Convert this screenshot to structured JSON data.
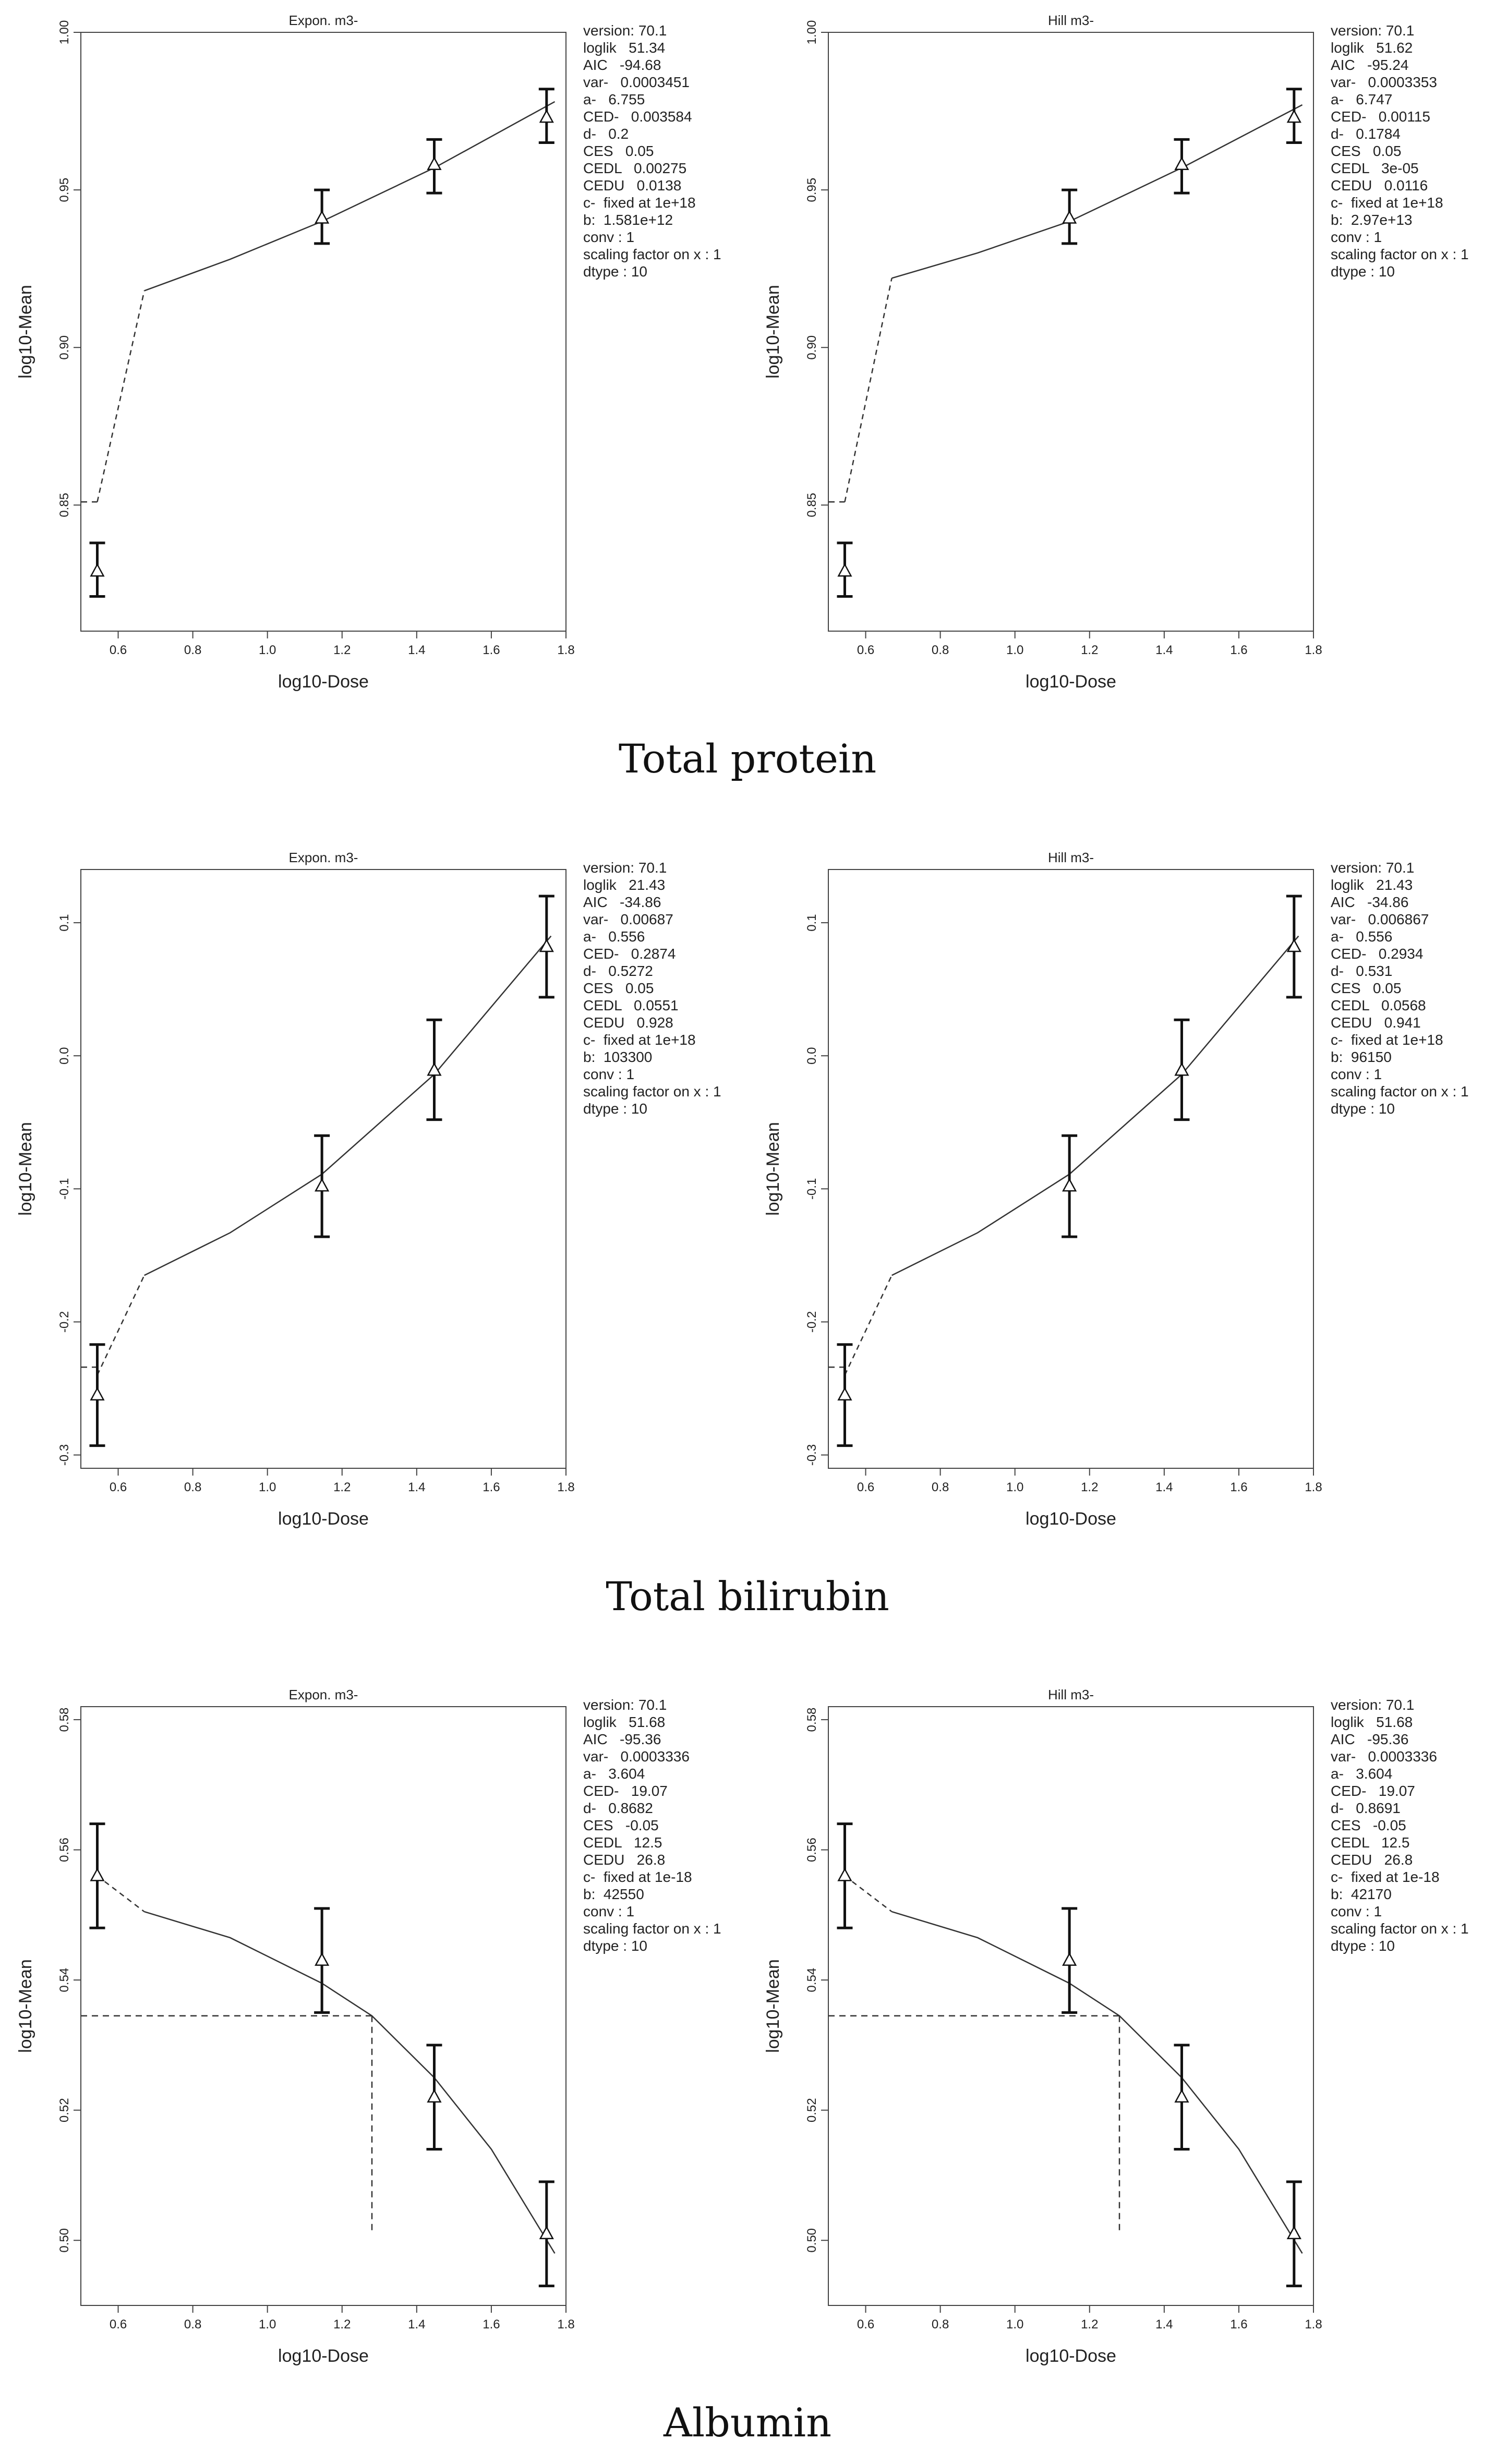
{
  "sections": [
    {
      "title": "Total protein",
      "panels": [
        {
          "model": "Expon. m3-",
          "stats": [
            "version: 70.1",
            "loglik   51.34",
            "AIC   -94.68",
            "var-   0.0003451",
            "a-   6.755",
            "CED-   0.003584",
            "d-   0.2",
            "CES   0.05",
            "CEDL   0.00275",
            "CEDU   0.0138",
            "c-  fixed at 1e+18",
            "b:  1.581e+12",
            "conv : 1",
            "scaling factor on x : 1",
            "dtype : 10"
          ]
        },
        {
          "model": "Hill m3-",
          "stats": [
            "version: 70.1",
            "loglik   51.62",
            "AIC   -95.24",
            "var-   0.0003353",
            "a-   6.747",
            "CED-   0.00115",
            "d-   0.1784",
            "CES   0.05",
            "CEDL   3e-05",
            "CEDU   0.0116",
            "c-  fixed at 1e+18",
            "b:  2.97e+13",
            "conv : 1",
            "scaling factor on x : 1",
            "dtype : 10"
          ]
        }
      ]
    },
    {
      "title": "Total bilirubin",
      "panels": [
        {
          "model": "Expon. m3-",
          "stats": [
            "version: 70.1",
            "loglik   21.43",
            "AIC   -34.86",
            "var-   0.00687",
            "a-   0.556",
            "CED-   0.2874",
            "d-   0.5272",
            "CES   0.05",
            "CEDL   0.0551",
            "CEDU   0.928",
            "c-  fixed at 1e+18",
            "b:  103300",
            "conv : 1",
            "scaling factor on x : 1",
            "dtype : 10"
          ]
        },
        {
          "model": "Hill m3-",
          "stats": [
            "version: 70.1",
            "loglik   21.43",
            "AIC   -34.86",
            "var-   0.006867",
            "a-   0.556",
            "CED-   0.2934",
            "d-   0.531",
            "CES   0.05",
            "CEDL   0.0568",
            "CEDU   0.941",
            "c-  fixed at 1e+18",
            "b:  96150",
            "conv : 1",
            "scaling factor on x : 1",
            "dtype : 10"
          ]
        }
      ]
    },
    {
      "title": "Albumin",
      "panels": [
        {
          "model": "Expon. m3-",
          "stats": [
            "version: 70.1",
            "loglik   51.68",
            "AIC   -95.36",
            "var-   0.0003336",
            "a-   3.604",
            "CED-   19.07",
            "d-   0.8682",
            "CES   -0.05",
            "CEDL   12.5",
            "CEDU   26.8",
            "c-  fixed at 1e-18",
            "b:  42550",
            "conv : 1",
            "scaling factor on x : 1",
            "dtype : 10"
          ]
        },
        {
          "model": "Hill m3-",
          "stats": [
            "version: 70.1",
            "loglik   51.68",
            "AIC   -95.36",
            "var-   0.0003336",
            "a-   3.604",
            "CED-   19.07",
            "d-   0.8691",
            "CES   -0.05",
            "CEDL   12.5",
            "CEDU   26.8",
            "c-  fixed at 1e-18",
            "b:  42170",
            "conv : 1",
            "scaling factor on x : 1",
            "dtype : 10"
          ]
        }
      ]
    }
  ],
  "chart_data": [
    {
      "type": "line",
      "section": "Total protein",
      "title": "Expon. m3-",
      "xlabel": "log10-Dose",
      "ylabel": "log10-Mean",
      "xlim": [
        0.5,
        1.8
      ],
      "ylim": [
        0.81,
        1.0
      ],
      "xticks": [
        0.6,
        0.8,
        1.0,
        1.2,
        1.4,
        1.6,
        1.8
      ],
      "yticks": [
        0.85,
        0.9,
        0.95,
        1.0
      ],
      "points": [
        {
          "x": 0.544,
          "y": 0.829,
          "lo": 0.821,
          "hi": 0.838
        },
        {
          "x": 1.146,
          "y": 0.941,
          "lo": 0.933,
          "hi": 0.95
        },
        {
          "x": 1.447,
          "y": 0.958,
          "lo": 0.949,
          "hi": 0.966
        },
        {
          "x": 1.748,
          "y": 0.973,
          "lo": 0.965,
          "hi": 0.982
        }
      ],
      "fit": [
        [
          0.544,
          0.851
        ],
        [
          0.67,
          0.918
        ],
        [
          0.9,
          0.928
        ],
        [
          1.146,
          0.94
        ],
        [
          1.447,
          0.957
        ],
        [
          1.77,
          0.978
        ]
      ],
      "ces_lines": [
        [
          [
            0.5,
            0.851
          ],
          [
            0.544,
            0.851
          ]
        ]
      ]
    },
    {
      "type": "line",
      "section": "Total protein",
      "title": "Hill m3-",
      "xlabel": "log10-Dose",
      "ylabel": "log10-Mean",
      "xlim": [
        0.5,
        1.8
      ],
      "ylim": [
        0.81,
        1.0
      ],
      "xticks": [
        0.6,
        0.8,
        1.0,
        1.2,
        1.4,
        1.6,
        1.8
      ],
      "yticks": [
        0.85,
        0.9,
        0.95,
        1.0
      ],
      "points": [
        {
          "x": 0.544,
          "y": 0.829,
          "lo": 0.821,
          "hi": 0.838
        },
        {
          "x": 1.146,
          "y": 0.941,
          "lo": 0.933,
          "hi": 0.95
        },
        {
          "x": 1.447,
          "y": 0.958,
          "lo": 0.949,
          "hi": 0.966
        },
        {
          "x": 1.748,
          "y": 0.973,
          "lo": 0.965,
          "hi": 0.982
        }
      ],
      "fit": [
        [
          0.544,
          0.851
        ],
        [
          0.67,
          0.922
        ],
        [
          0.9,
          0.93
        ],
        [
          1.146,
          0.94
        ],
        [
          1.447,
          0.957
        ],
        [
          1.77,
          0.977
        ]
      ],
      "ces_lines": [
        [
          [
            0.5,
            0.851
          ],
          [
            0.544,
            0.851
          ]
        ]
      ]
    },
    {
      "type": "line",
      "section": "Total bilirubin",
      "title": "Expon. m3-",
      "xlabel": "log10-Dose",
      "ylabel": "log10-Mean",
      "xlim": [
        0.5,
        1.8
      ],
      "ylim": [
        -0.31,
        0.14
      ],
      "xticks": [
        0.6,
        0.8,
        1.0,
        1.2,
        1.4,
        1.6,
        1.8
      ],
      "yticks": [
        -0.3,
        -0.2,
        -0.1,
        0.0,
        0.1
      ],
      "points": [
        {
          "x": 0.544,
          "y": -0.255,
          "lo": -0.293,
          "hi": -0.217
        },
        {
          "x": 1.146,
          "y": -0.098,
          "lo": -0.136,
          "hi": -0.06
        },
        {
          "x": 1.447,
          "y": -0.011,
          "lo": -0.048,
          "hi": 0.027
        },
        {
          "x": 1.748,
          "y": 0.082,
          "lo": 0.044,
          "hi": 0.12
        }
      ],
      "fit": [
        [
          0.544,
          -0.24
        ],
        [
          0.67,
          -0.165
        ],
        [
          0.9,
          -0.133
        ],
        [
          1.146,
          -0.089
        ],
        [
          1.447,
          -0.014
        ],
        [
          1.76,
          0.09
        ]
      ],
      "ces_lines": [
        [
          [
            0.5,
            -0.234
          ],
          [
            0.544,
            -0.234
          ]
        ]
      ]
    },
    {
      "type": "line",
      "section": "Total bilirubin",
      "title": "Hill m3-",
      "xlabel": "log10-Dose",
      "ylabel": "log10-Mean",
      "xlim": [
        0.5,
        1.8
      ],
      "ylim": [
        -0.31,
        0.14
      ],
      "xticks": [
        0.6,
        0.8,
        1.0,
        1.2,
        1.4,
        1.6,
        1.8
      ],
      "yticks": [
        -0.3,
        -0.2,
        -0.1,
        0.0,
        0.1
      ],
      "points": [
        {
          "x": 0.544,
          "y": -0.255,
          "lo": -0.293,
          "hi": -0.217
        },
        {
          "x": 1.146,
          "y": -0.098,
          "lo": -0.136,
          "hi": -0.06
        },
        {
          "x": 1.447,
          "y": -0.011,
          "lo": -0.048,
          "hi": 0.027
        },
        {
          "x": 1.748,
          "y": 0.082,
          "lo": 0.044,
          "hi": 0.12
        }
      ],
      "fit": [
        [
          0.544,
          -0.24
        ],
        [
          0.67,
          -0.165
        ],
        [
          0.9,
          -0.133
        ],
        [
          1.146,
          -0.089
        ],
        [
          1.447,
          -0.014
        ],
        [
          1.76,
          0.09
        ]
      ],
      "ces_lines": [
        [
          [
            0.5,
            -0.234
          ],
          [
            0.544,
            -0.234
          ]
        ]
      ]
    },
    {
      "type": "line",
      "section": "Albumin",
      "title": "Expon. m3-",
      "xlabel": "log10-Dose",
      "ylabel": "log10-Mean",
      "xlim": [
        0.5,
        1.8
      ],
      "ylim": [
        0.49,
        0.582
      ],
      "xticks": [
        0.6,
        0.8,
        1.0,
        1.2,
        1.4,
        1.6,
        1.8
      ],
      "yticks": [
        0.5,
        0.52,
        0.54,
        0.56,
        0.58
      ],
      "points": [
        {
          "x": 0.544,
          "y": 0.556,
          "lo": 0.548,
          "hi": 0.564
        },
        {
          "x": 1.146,
          "y": 0.543,
          "lo": 0.535,
          "hi": 0.551
        },
        {
          "x": 1.447,
          "y": 0.522,
          "lo": 0.514,
          "hi": 0.53
        },
        {
          "x": 1.748,
          "y": 0.501,
          "lo": 0.493,
          "hi": 0.509
        }
      ],
      "fit": [
        [
          0.544,
          0.556
        ],
        [
          0.67,
          0.5505
        ],
        [
          0.9,
          0.5465
        ],
        [
          1.146,
          0.5395
        ],
        [
          1.28,
          0.5345
        ],
        [
          1.447,
          0.525
        ],
        [
          1.6,
          0.514
        ],
        [
          1.77,
          0.498
        ]
      ],
      "ces_lines": [
        [
          [
            0.5,
            0.5345
          ],
          [
            1.28,
            0.5345
          ]
        ],
        [
          [
            1.28,
            0.5345
          ],
          [
            1.28,
            0.501
          ]
        ]
      ]
    },
    {
      "type": "line",
      "section": "Albumin",
      "title": "Hill m3-",
      "xlabel": "log10-Dose",
      "ylabel": "log10-Mean",
      "xlim": [
        0.5,
        1.8
      ],
      "ylim": [
        0.49,
        0.582
      ],
      "xticks": [
        0.6,
        0.8,
        1.0,
        1.2,
        1.4,
        1.6,
        1.8
      ],
      "yticks": [
        0.5,
        0.52,
        0.54,
        0.56,
        0.58
      ],
      "points": [
        {
          "x": 0.544,
          "y": 0.556,
          "lo": 0.548,
          "hi": 0.564
        },
        {
          "x": 1.146,
          "y": 0.543,
          "lo": 0.535,
          "hi": 0.551
        },
        {
          "x": 1.447,
          "y": 0.522,
          "lo": 0.514,
          "hi": 0.53
        },
        {
          "x": 1.748,
          "y": 0.501,
          "lo": 0.493,
          "hi": 0.509
        }
      ],
      "fit": [
        [
          0.544,
          0.556
        ],
        [
          0.67,
          0.5505
        ],
        [
          0.9,
          0.5465
        ],
        [
          1.146,
          0.5395
        ],
        [
          1.28,
          0.5345
        ],
        [
          1.447,
          0.525
        ],
        [
          1.6,
          0.514
        ],
        [
          1.77,
          0.498
        ]
      ],
      "ces_lines": [
        [
          [
            0.5,
            0.5345
          ],
          [
            1.28,
            0.5345
          ]
        ],
        [
          [
            1.28,
            0.5345
          ],
          [
            1.28,
            0.501
          ]
        ]
      ]
    }
  ]
}
